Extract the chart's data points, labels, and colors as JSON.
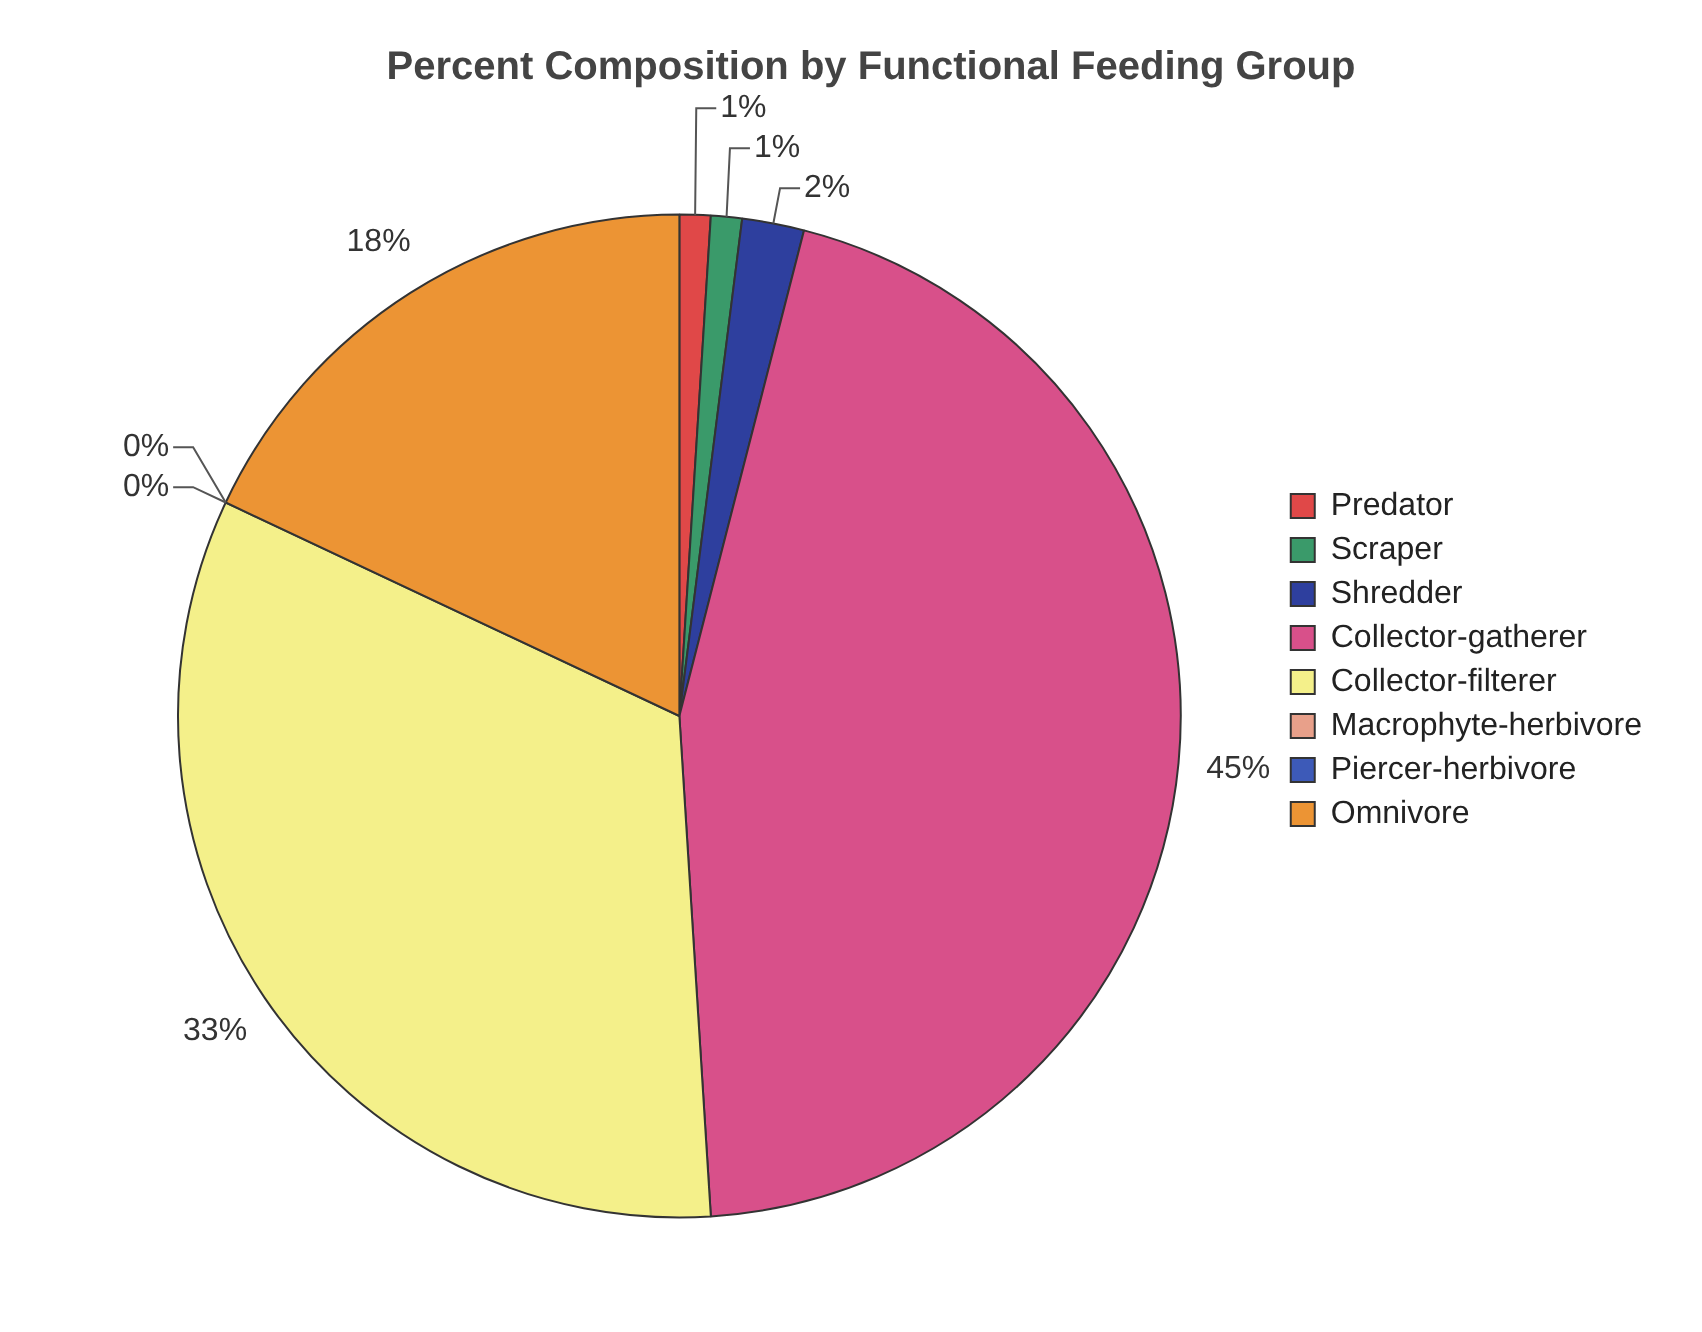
{
  "chart_data": {
    "type": "pie",
    "title": "Percent Composition by Functional Feeding Group",
    "categories": [
      "Predator",
      "Scraper",
      "Shredder",
      "Collector-gatherer",
      "Collector-filterer",
      "Macrophyte-herbivore",
      "Piercer-herbivore",
      "Omnivore"
    ],
    "values": [
      1,
      1,
      2,
      45,
      33,
      0,
      0,
      18
    ],
    "value_labels": [
      "1%",
      "1%",
      "2%",
      "45%",
      "33%",
      "0%",
      "0%",
      "18%"
    ],
    "colors": [
      "#e04848",
      "#3a9a6a",
      "#2e3f9e",
      "#d8508a",
      "#f4f08a",
      "#e8a08a",
      "#3d5ab8",
      "#ec9434"
    ],
    "legend": "right"
  }
}
